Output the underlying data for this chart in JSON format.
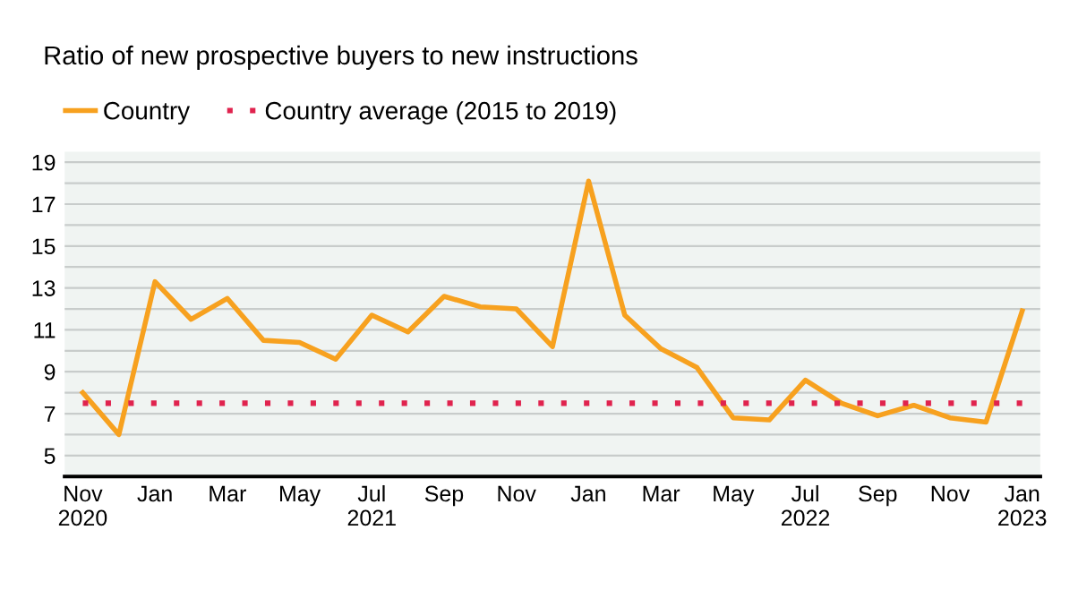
{
  "chart_data": {
    "type": "line",
    "title": "Ratio of new prospective buyers to new instructions",
    "categories": [
      "Nov\n2020",
      null,
      "Jan",
      null,
      "Mar",
      null,
      "May",
      null,
      "Jul\n2021",
      null,
      "Sep",
      null,
      "Nov",
      null,
      "Jan",
      null,
      "Mar",
      null,
      "May",
      null,
      "Jul\n2022",
      null,
      "Sep",
      null,
      "Nov",
      null,
      "Jan\n2023"
    ],
    "series": [
      {
        "name": "Country",
        "color": "#f7a11f",
        "values": [
          8.0,
          6.0,
          13.3,
          11.5,
          12.5,
          10.5,
          10.4,
          9.6,
          11.7,
          10.9,
          12.6,
          12.1,
          12.0,
          10.2,
          18.1,
          11.7,
          10.1,
          9.2,
          6.8,
          6.7,
          8.6,
          7.5,
          6.9,
          7.4,
          6.8,
          6.6,
          11.9
        ]
      },
      {
        "name": "Country average (2015 to 2019)",
        "color": "#e0234e",
        "line_style": "dotted",
        "values": [
          7.5,
          7.5,
          7.5,
          7.5,
          7.5,
          7.5,
          7.5,
          7.5,
          7.5,
          7.5,
          7.5,
          7.5,
          7.5,
          7.5,
          7.5,
          7.5,
          7.5,
          7.5,
          7.5,
          7.5,
          7.5,
          7.5,
          7.5,
          7.5,
          7.5,
          7.5,
          7.5
        ]
      }
    ],
    "ylim": [
      4,
      19.5
    ],
    "yticks": [
      5,
      {
        "value": 6,
        "label": null
      },
      7,
      {
        "value": 8,
        "label": null
      },
      9,
      {
        "value": 10,
        "label": null
      },
      11,
      {
        "value": 12,
        "label": null
      },
      13,
      {
        "value": 14,
        "label": null
      },
      15,
      {
        "value": 16,
        "label": null
      },
      17,
      {
        "value": 18,
        "label": null
      },
      19
    ],
    "grid": "y",
    "legend": "top left",
    "marker": "none"
  }
}
